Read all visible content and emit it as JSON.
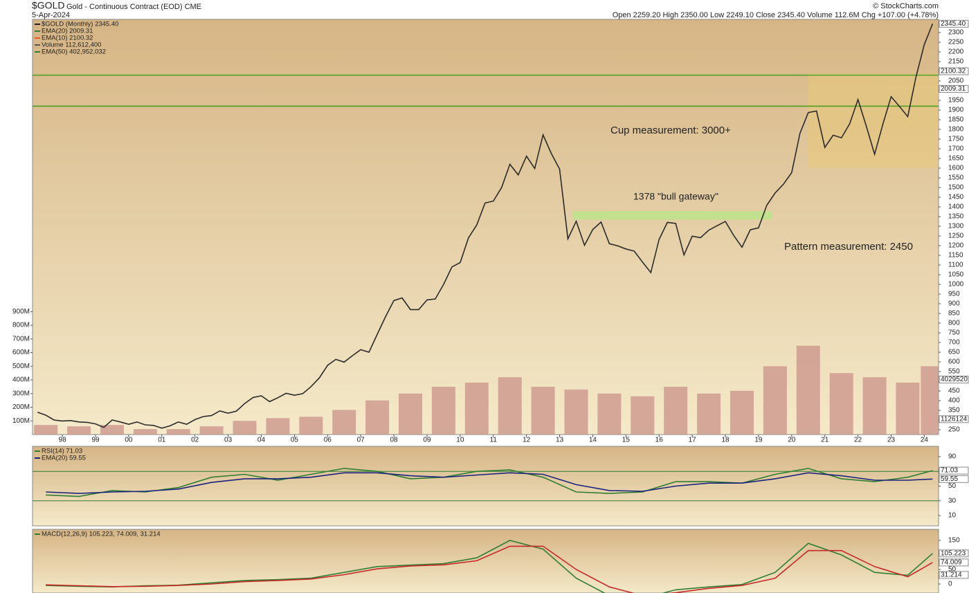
{
  "header": {
    "symbol": "$GOLD",
    "name": "Gold - Continuous Contract (EOD) CME",
    "date": "5-Apr-2024",
    "quote": "Open 2259.20  High 2350.00  Low 2249.10  Close 2345.40  Volume 112.6M  Chg +107.00 (+4.78%)",
    "copyright": "© StockCharts.com"
  },
  "chart_data": [
    {
      "type": "line",
      "legend": [
        {
          "text": "$GOLD (Monthly) 2345.40",
          "color": "#222222"
        },
        {
          "text": "EMA(20) 2009.31",
          "color": "#2e7d32"
        },
        {
          "text": "EMA(10) 2100.32",
          "color": "#e8571e"
        },
        {
          "text": "Volume 112,612,400",
          "color": "#555555"
        },
        {
          "text": "EMA(50) 402,952,032",
          "color": "#2e7d32"
        }
      ],
      "annotations": [
        {
          "text": "Cup measurement: 3000+",
          "color": "#555555"
        },
        {
          "text": "1378 \"bull gateway\"",
          "color": "#5aa832"
        },
        {
          "text": "Pattern measurement: 2450",
          "color": "#555555"
        }
      ],
      "xlim": [
        1997.1,
        2024.43
      ],
      "xticks": [
        {
          "value": 1998,
          "label": "98"
        },
        {
          "value": 1999,
          "label": "99"
        },
        {
          "value": 2000,
          "label": "00"
        },
        {
          "value": 2001,
          "label": "01"
        },
        {
          "value": 2002,
          "label": "02"
        },
        {
          "value": 2003,
          "label": "03"
        },
        {
          "value": 2004,
          "label": "04"
        },
        {
          "value": 2005,
          "label": "05"
        },
        {
          "value": 2006,
          "label": "06"
        },
        {
          "value": 2007,
          "label": "07"
        },
        {
          "value": 2008,
          "label": "08"
        },
        {
          "value": 2009,
          "label": "09"
        },
        {
          "value": 2010,
          "label": "10"
        },
        {
          "value": 2011,
          "label": "11"
        },
        {
          "value": 2012,
          "label": "12"
        },
        {
          "value": 2013,
          "label": "13"
        },
        {
          "value": 2014,
          "label": "14"
        },
        {
          "value": 2015,
          "label": "15"
        },
        {
          "value": 2016,
          "label": "16"
        },
        {
          "value": 2017,
          "label": "17"
        },
        {
          "value": 2018,
          "label": "18"
        },
        {
          "value": 2019,
          "label": "19"
        },
        {
          "value": 2020,
          "label": "20"
        },
        {
          "value": 2021,
          "label": "21"
        },
        {
          "value": 2022,
          "label": "22"
        },
        {
          "value": 2023,
          "label": "23"
        },
        {
          "value": 2024,
          "label": "24"
        }
      ],
      "ylim": [
        225,
        2368
      ],
      "yticks": [
        250,
        300,
        350,
        400,
        450,
        500,
        550,
        600,
        650,
        700,
        750,
        800,
        850,
        900,
        950,
        1000,
        1050,
        1100,
        1150,
        1200,
        1250,
        1300,
        1350,
        1400,
        1450,
        1500,
        1550,
        1600,
        1650,
        1700,
        1750,
        1800,
        1850,
        1900,
        1950,
        2000,
        2050,
        2100,
        2150,
        2200,
        2250,
        2300
      ],
      "y2lim": [
        0,
        3040
      ],
      "y2ticks": [
        {
          "value": 100,
          "label": "100M"
        },
        {
          "value": 200,
          "label": "200M"
        },
        {
          "value": 300,
          "label": "300M"
        },
        {
          "value": 400,
          "label": "400M"
        },
        {
          "value": 500,
          "label": "500M"
        },
        {
          "value": 600,
          "label": "600M"
        },
        {
          "value": 700,
          "label": "700M"
        },
        {
          "value": 800,
          "label": "800M"
        },
        {
          "value": 900,
          "label": "900M"
        }
      ],
      "levels": [
        2080,
        1920
      ],
      "level_color": "#4aa020",
      "gateway_band": [
        1335,
        1378
      ],
      "target_box": [
        1600,
        2090
      ],
      "tags": [
        {
          "value": 2345.4,
          "label": "2345.40"
        },
        {
          "value": 2100.32,
          "label": "2100.32"
        },
        {
          "value": 2009.31,
          "label": "2009.31"
        }
      ],
      "y2tags": [
        {
          "value": 402.952032,
          "label": "4029520"
        },
        {
          "value": 112.6124,
          "label": "1126124"
        }
      ],
      "series": [
        {
          "name": "Volume",
          "type": "bar",
          "axis": "y2",
          "color": "#c9928a",
          "x": [
            1997.5,
            1998.5,
            1999.5,
            2000.5,
            2001.5,
            2002.5,
            2003.5,
            2004.5,
            2005.5,
            2006.5,
            2007.5,
            2008.5,
            2009.5,
            2010.5,
            2011.5,
            2012.5,
            2013.5,
            2014.5,
            2015.5,
            2016.5,
            2017.5,
            2018.5,
            2019.5,
            2020.5,
            2021.5,
            2022.5,
            2023.5,
            2024.25
          ],
          "values": [
            70,
            60,
            70,
            40,
            40,
            60,
            100,
            120,
            130,
            180,
            250,
            300,
            350,
            380,
            420,
            350,
            330,
            300,
            280,
            350,
            300,
            320,
            500,
            650,
            450,
            420,
            380,
            500
          ]
        },
        {
          "name": "$GOLD",
          "type": "line",
          "color": "#2a2a2a",
          "x": [
            1997.25,
            1997.5,
            1997.75,
            1998,
            1998.25,
            1998.5,
            1998.75,
            1999,
            1999.25,
            1999.5,
            1999.75,
            2000,
            2000.25,
            2000.5,
            2000.75,
            2001,
            2001.25,
            2001.5,
            2001.75,
            2002,
            2002.25,
            2002.5,
            2002.75,
            2003,
            2003.25,
            2003.5,
            2003.75,
            2004,
            2004.25,
            2004.5,
            2004.75,
            2005,
            2005.25,
            2005.5,
            2005.75,
            2006,
            2006.25,
            2006.5,
            2006.75,
            2007,
            2007.25,
            2007.5,
            2007.75,
            2008,
            2008.25,
            2008.5,
            2008.75,
            2009,
            2009.25,
            2009.5,
            2009.75,
            2010,
            2010.25,
            2010.5,
            2010.75,
            2011,
            2011.25,
            2011.5,
            2011.75,
            2012,
            2012.25,
            2012.5,
            2012.75,
            2013,
            2013.25,
            2013.5,
            2013.75,
            2014,
            2014.25,
            2014.5,
            2014.75,
            2015,
            2015.25,
            2015.5,
            2015.75,
            2016,
            2016.25,
            2016.5,
            2016.75,
            2017,
            2017.25,
            2017.5,
            2017.75,
            2018,
            2018.25,
            2018.5,
            2018.75,
            2019,
            2019.25,
            2019.5,
            2019.75,
            2020,
            2020.25,
            2020.5,
            2020.75,
            2021,
            2021.25,
            2021.5,
            2021.75,
            2022,
            2022.25,
            2022.5,
            2022.75,
            2023,
            2023.25,
            2023.5,
            2023.75,
            2024,
            2024.25
          ],
          "values": [
            340,
            325,
            300,
            295,
            297,
            290,
            288,
            280,
            262,
            300,
            290,
            278,
            290,
            275,
            272,
            258,
            270,
            290,
            278,
            302,
            318,
            323,
            347,
            335,
            346,
            385,
            416,
            425,
            395,
            415,
            438,
            428,
            436,
            472,
            517,
            582,
            613,
            599,
            632,
            663,
            650,
            743,
            834,
            917,
            930,
            870,
            870,
            920,
            925,
            1000,
            1090,
            1113,
            1240,
            1307,
            1420,
            1430,
            1500,
            1620,
            1565,
            1662,
            1598,
            1772,
            1675,
            1595,
            1235,
            1326,
            1202,
            1283,
            1322,
            1210,
            1199,
            1183,
            1172,
            1115,
            1061,
            1232,
            1320,
            1315,
            1152,
            1249,
            1241,
            1280,
            1303,
            1325,
            1253,
            1192,
            1282,
            1292,
            1409,
            1472,
            1517,
            1577,
            1780,
            1887,
            1895,
            1707,
            1770,
            1757,
            1829,
            1954,
            1817,
            1672,
            1826,
            1969,
            1919,
            1866,
            2071,
            2238,
            2345.4
          ]
        }
      ]
    },
    {
      "type": "line",
      "legend": [
        {
          "text": "RSI(14) 71.03",
          "color": "#2e7d32"
        },
        {
          "text": "EMA(20) 59.55",
          "color": "#1a237e"
        }
      ],
      "ylim": [
        -4,
        104
      ],
      "yticks": [
        10,
        30,
        50,
        70,
        90
      ],
      "levels": [
        70,
        30
      ],
      "level_color": "#2e7d32",
      "tags": [
        {
          "value": 71.03,
          "label": "71.03"
        },
        {
          "value": 59.55,
          "label": "59.55"
        }
      ],
      "series": [
        {
          "name": "RSI(14)",
          "type": "line",
          "color": "#2e7d32",
          "x": [
            1997.5,
            1998.5,
            1999.5,
            2000.5,
            2001.5,
            2002.5,
            2003.5,
            2004.5,
            2005.5,
            2006.5,
            2007.5,
            2008.5,
            2009.5,
            2010.5,
            2011.5,
            2012.5,
            2013.5,
            2014.5,
            2015.5,
            2016.5,
            2017.5,
            2018.5,
            2019.5,
            2020.5,
            2021.5,
            2022.5,
            2023.5,
            2024.25
          ],
          "values": [
            38,
            36,
            44,
            42,
            48,
            62,
            66,
            58,
            66,
            74,
            70,
            60,
            62,
            70,
            72,
            62,
            42,
            40,
            42,
            56,
            56,
            54,
            66,
            74,
            60,
            56,
            62,
            71.03
          ]
        },
        {
          "name": "EMA(20)",
          "type": "line",
          "color": "#1a237e",
          "x": [
            1997.5,
            1998.5,
            1999.5,
            2000.5,
            2001.5,
            2002.5,
            2003.5,
            2004.5,
            2005.5,
            2006.5,
            2007.5,
            2008.5,
            2009.5,
            2010.5,
            2011.5,
            2012.5,
            2013.5,
            2014.5,
            2015.5,
            2016.5,
            2017.5,
            2018.5,
            2019.5,
            2020.5,
            2021.5,
            2022.5,
            2023.5,
            2024.25
          ],
          "values": [
            42,
            40,
            42,
            43,
            46,
            55,
            60,
            60,
            62,
            68,
            68,
            64,
            62,
            65,
            68,
            66,
            52,
            44,
            43,
            50,
            54,
            54,
            60,
            68,
            64,
            58,
            58,
            59.55
          ]
        }
      ]
    },
    {
      "type": "line",
      "legend": [
        {
          "text": "MACD(12,26,9) 105.223, 74.009, 31.214",
          "color": "#2e7d32"
        }
      ],
      "ylim": [
        -31,
        188
      ],
      "yticks": [
        0,
        50,
        100,
        150
      ],
      "tags": [
        {
          "value": 105.223,
          "label": "105.223"
        },
        {
          "value": 74.009,
          "label": "74.009"
        },
        {
          "value": 31.214,
          "label": "31.214"
        }
      ],
      "series": [
        {
          "name": "MACD",
          "type": "line",
          "color": "#2e7d32",
          "x": [
            1997.5,
            1998.5,
            1999.5,
            2000.5,
            2001.5,
            2002.5,
            2003.5,
            2004.5,
            2005.5,
            2006.5,
            2007.5,
            2008.5,
            2009.5,
            2010.5,
            2011.5,
            2012.5,
            2013.5,
            2014.5,
            2015.5,
            2016.5,
            2017.5,
            2018.5,
            2019.5,
            2020.5,
            2021.5,
            2022.5,
            2023.5,
            2024.25
          ],
          "values": [
            -5,
            -8,
            -10,
            -6,
            -4,
            4,
            12,
            15,
            20,
            40,
            60,
            65,
            70,
            90,
            150,
            120,
            20,
            -40,
            -50,
            -20,
            -10,
            -2,
            40,
            140,
            100,
            40,
            30,
            105.223
          ]
        },
        {
          "name": "Signal",
          "type": "line",
          "color": "#c62828",
          "x": [
            1997.5,
            1998.5,
            1999.5,
            2000.5,
            2001.5,
            2002.5,
            2003.5,
            2004.5,
            2005.5,
            2006.5,
            2007.5,
            2008.5,
            2009.5,
            2010.5,
            2011.5,
            2012.5,
            2013.5,
            2014.5,
            2015.5,
            2016.5,
            2017.5,
            2018.5,
            2019.5,
            2020.5,
            2021.5,
            2022.5,
            2023.5,
            2024.25
          ],
          "values": [
            -3,
            -6,
            -9,
            -8,
            -5,
            0,
            8,
            12,
            17,
            32,
            52,
            62,
            66,
            80,
            130,
            130,
            50,
            -10,
            -40,
            -30,
            -15,
            -5,
            20,
            115,
            115,
            60,
            25,
            74.009
          ]
        }
      ]
    }
  ]
}
